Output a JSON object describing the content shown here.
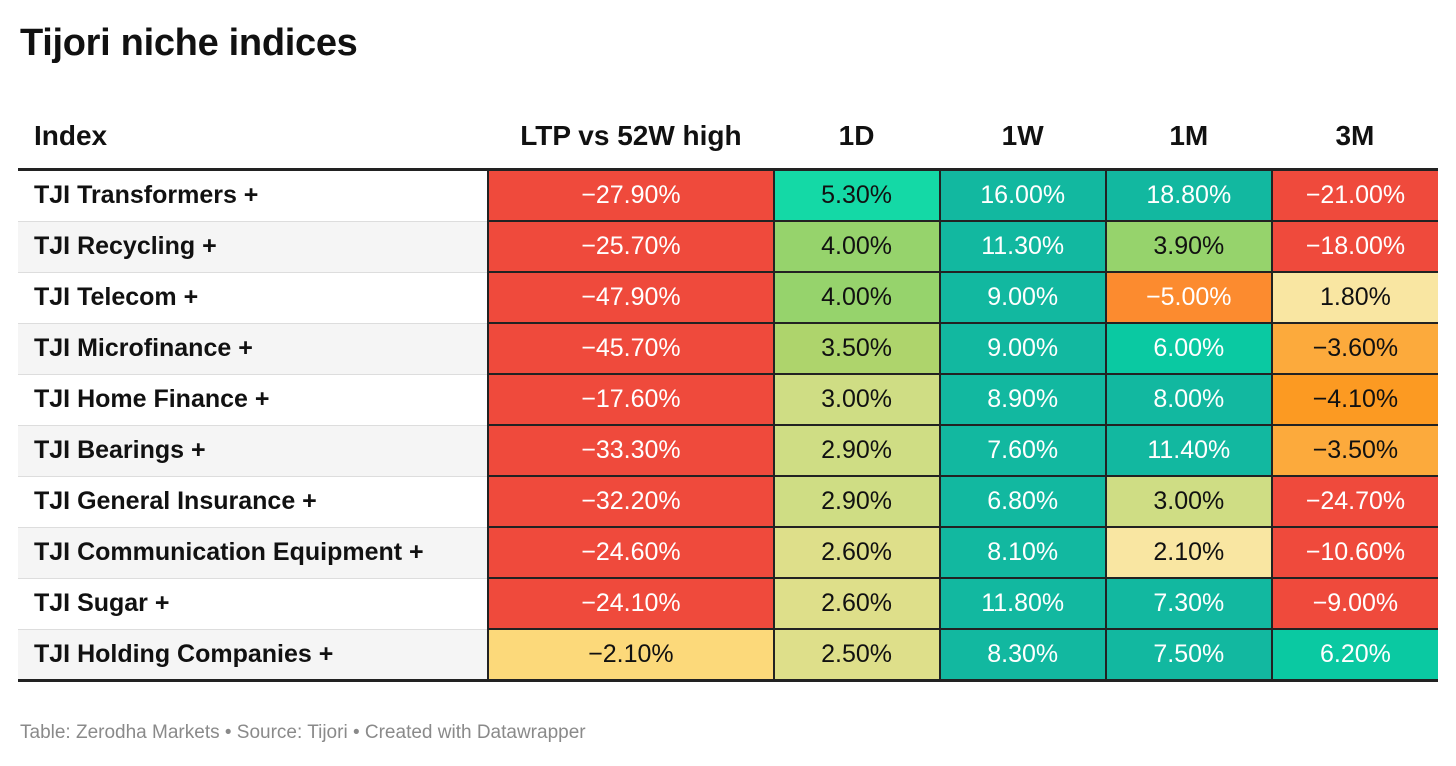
{
  "title": "Tijori niche indices",
  "footer": "Table: Zerodha Markets • Source: Tijori • Created with Datawrapper",
  "colors": {
    "red": "#ef4a3c",
    "teal": "#12b8a0",
    "bright_teal": "#14d9a6",
    "mint": "#0ac9a2",
    "green": "#96d36c",
    "lime": "#aed46c",
    "yellow_green": "#cfdd84",
    "pale_yellow": "#dedf8a",
    "cream": "#f9e6a2",
    "light_amber": "#fcd97a",
    "orange": "#fc8b2f",
    "amber": "#fcaa3c",
    "deep_amber": "#fc9a22"
  },
  "chart_data": {
    "type": "table",
    "title": "Tijori niche indices",
    "columns": [
      "Index",
      "LTP vs 52W high",
      "1D",
      "1W",
      "1M",
      "3M"
    ],
    "rows": [
      {
        "index": "TJI Transformers +",
        "values": [
          "−27.90%",
          "5.30%",
          "16.00%",
          "18.80%",
          "−21.00%"
        ],
        "colors": [
          "red",
          "bright_teal",
          "teal",
          "teal",
          "red"
        ]
      },
      {
        "index": "TJI Recycling +",
        "values": [
          "−25.70%",
          "4.00%",
          "11.30%",
          "3.90%",
          "−18.00%"
        ],
        "colors": [
          "red",
          "green",
          "teal",
          "green",
          "red"
        ]
      },
      {
        "index": "TJI Telecom +",
        "values": [
          "−47.90%",
          "4.00%",
          "9.00%",
          "−5.00%",
          "1.80%"
        ],
        "colors": [
          "red",
          "green",
          "teal",
          "orange",
          "cream"
        ]
      },
      {
        "index": "TJI Microfinance +",
        "values": [
          "−45.70%",
          "3.50%",
          "9.00%",
          "6.00%",
          "−3.60%"
        ],
        "colors": [
          "red",
          "lime",
          "teal",
          "mint",
          "amber"
        ]
      },
      {
        "index": "TJI Home Finance +",
        "values": [
          "−17.60%",
          "3.00%",
          "8.90%",
          "8.00%",
          "−4.10%"
        ],
        "colors": [
          "red",
          "yellow_green",
          "teal",
          "teal",
          "deep_amber"
        ]
      },
      {
        "index": "TJI Bearings +",
        "values": [
          "−33.30%",
          "2.90%",
          "7.60%",
          "11.40%",
          "−3.50%"
        ],
        "colors": [
          "red",
          "yellow_green",
          "teal",
          "teal",
          "amber"
        ]
      },
      {
        "index": "TJI General Insurance +",
        "values": [
          "−32.20%",
          "2.90%",
          "6.80%",
          "3.00%",
          "−24.70%"
        ],
        "colors": [
          "red",
          "yellow_green",
          "teal",
          "yellow_green",
          "red"
        ]
      },
      {
        "index": "TJI Communication Equipment +",
        "values": [
          "−24.60%",
          "2.60%",
          "8.10%",
          "2.10%",
          "−10.60%"
        ],
        "colors": [
          "red",
          "pale_yellow",
          "teal",
          "cream",
          "red"
        ]
      },
      {
        "index": "TJI Sugar +",
        "values": [
          "−24.10%",
          "2.60%",
          "11.80%",
          "7.30%",
          "−9.00%"
        ],
        "colors": [
          "red",
          "pale_yellow",
          "teal",
          "teal",
          "red"
        ]
      },
      {
        "index": "TJI Holding Companies +",
        "values": [
          "−2.10%",
          "2.50%",
          "8.30%",
          "7.50%",
          "6.20%"
        ],
        "colors": [
          "light_amber",
          "pale_yellow",
          "teal",
          "teal",
          "mint"
        ]
      }
    ]
  }
}
